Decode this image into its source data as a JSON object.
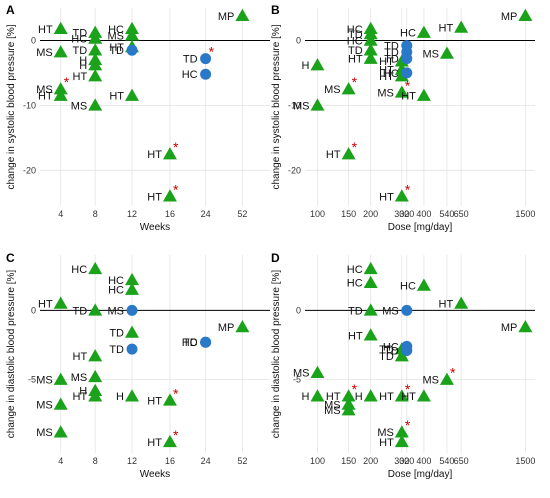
{
  "colors": {
    "triangle": "#1aa31a",
    "circle": "#2a78c8",
    "asterisk": "#cc0000",
    "grid": "#e4e4e4",
    "zero_line": "#000000",
    "axis_text": "#333333"
  },
  "chart_data": [
    {
      "panel_label": "A",
      "type": "scatter",
      "xlabel": "Weeks",
      "ylabel": "change in systolic blood pressure [%]",
      "x_scale": "categorical",
      "x_ticks": [
        "4",
        "8",
        "12",
        "16",
        "24",
        "52"
      ],
      "y_ticks": [
        0,
        -10,
        -20
      ],
      "ylim": [
        -25.5,
        5
      ],
      "reference_line": 0,
      "grid": true,
      "points": [
        {
          "x": "4",
          "y": 1.8,
          "shape": "triangle",
          "label": "HT"
        },
        {
          "x": "4",
          "y": -1.8,
          "shape": "triangle",
          "label": "MS"
        },
        {
          "x": "4",
          "y": -7.5,
          "shape": "triangle",
          "label": "MS",
          "asterisk": true
        },
        {
          "x": "4",
          "y": -8.5,
          "shape": "triangle",
          "label": "HT"
        },
        {
          "x": "8",
          "y": 1.2,
          "shape": "triangle",
          "label": "TD"
        },
        {
          "x": "8",
          "y": 0.3,
          "shape": "triangle",
          "label": "HC"
        },
        {
          "x": "8",
          "y": -1.5,
          "shape": "triangle",
          "label": "TD"
        },
        {
          "x": "8",
          "y": -3.8,
          "shape": "triangle",
          "label": "H"
        },
        {
          "x": "8",
          "y": -3.0,
          "shape": "triangle",
          "label": "H"
        },
        {
          "x": "8",
          "y": -5.5,
          "shape": "triangle",
          "label": "HT"
        },
        {
          "x": "8",
          "y": -10.0,
          "shape": "triangle",
          "label": "MS"
        },
        {
          "x": "12",
          "y": 1.8,
          "shape": "triangle",
          "label": "HC"
        },
        {
          "x": "12",
          "y": 0.8,
          "shape": "triangle",
          "label": "MS"
        },
        {
          "x": "12",
          "y": -1.0,
          "shape": "triangle",
          "label": "HT"
        },
        {
          "x": "12",
          "y": -1.5,
          "shape": "circle",
          "label": "TD"
        },
        {
          "x": "12",
          "y": -8.5,
          "shape": "triangle",
          "label": "HT"
        },
        {
          "x": "16",
          "y": -17.5,
          "shape": "triangle",
          "label": "HT",
          "asterisk": true
        },
        {
          "x": "16",
          "y": -24.0,
          "shape": "triangle",
          "label": "HT",
          "asterisk": true
        },
        {
          "x": "24",
          "y": -2.8,
          "shape": "circle",
          "label": "TD",
          "asterisk": true
        },
        {
          "x": "24",
          "y": -5.2,
          "shape": "circle",
          "label": "HC"
        },
        {
          "x": "52",
          "y": 3.8,
          "shape": "triangle",
          "label": "MP"
        }
      ]
    },
    {
      "panel_label": "B",
      "type": "scatter",
      "xlabel": "Dose [mg/day]",
      "ylabel": "change in systolic blood pressure [%]",
      "x_scale": "log",
      "x_ticks": [
        "100",
        "150",
        "200",
        "300",
        "320",
        "400",
        "540",
        "650",
        "1500"
      ],
      "y_ticks": [
        0,
        -10,
        -20
      ],
      "ylim": [
        -25.5,
        5
      ],
      "reference_line": 0,
      "grid": true,
      "points": [
        {
          "x": 100,
          "y": -3.8,
          "shape": "triangle",
          "label": "H"
        },
        {
          "x": 100,
          "y": -10.0,
          "shape": "triangle",
          "label": "MS"
        },
        {
          "x": 150,
          "y": -7.5,
          "shape": "triangle",
          "label": "MS",
          "asterisk": true
        },
        {
          "x": 150,
          "y": -17.5,
          "shape": "triangle",
          "label": "HT",
          "asterisk": true
        },
        {
          "x": 200,
          "y": 1.8,
          "shape": "triangle",
          "label": "HC"
        },
        {
          "x": 200,
          "y": 1.0,
          "shape": "triangle",
          "label": "TD"
        },
        {
          "x": 200,
          "y": 0.0,
          "shape": "triangle",
          "label": "HC"
        },
        {
          "x": 200,
          "y": -1.5,
          "shape": "triangle",
          "label": "TD"
        },
        {
          "x": 200,
          "y": -2.8,
          "shape": "triangle",
          "label": "HT"
        },
        {
          "x": 300,
          "y": -3.2,
          "shape": "triangle",
          "label": "HT"
        },
        {
          "x": 300,
          "y": -4.5,
          "shape": "triangle",
          "label": "HT"
        },
        {
          "x": 300,
          "y": -5.5,
          "shape": "triangle",
          "label": "HT"
        },
        {
          "x": 300,
          "y": -8.0,
          "shape": "triangle",
          "label": "MS",
          "asterisk": true
        },
        {
          "x": 300,
          "y": -24.0,
          "shape": "triangle",
          "label": "HT",
          "asterisk": true
        },
        {
          "x": 320,
          "y": -0.8,
          "shape": "circle",
          "label": "TD"
        },
        {
          "x": 320,
          "y": -1.8,
          "shape": "circle",
          "label": "TD"
        },
        {
          "x": 320,
          "y": -2.8,
          "shape": "circle",
          "label": "TD"
        },
        {
          "x": 320,
          "y": -5.0,
          "shape": "circle",
          "label": "HC"
        },
        {
          "x": 400,
          "y": 1.2,
          "shape": "triangle",
          "label": "HC"
        },
        {
          "x": 400,
          "y": -8.5,
          "shape": "triangle",
          "label": "HT"
        },
        {
          "x": 540,
          "y": -2.0,
          "shape": "triangle",
          "label": "MS"
        },
        {
          "x": 650,
          "y": 2.0,
          "shape": "triangle",
          "label": "HT"
        },
        {
          "x": 1500,
          "y": 3.8,
          "shape": "triangle",
          "label": "MP"
        }
      ]
    },
    {
      "panel_label": "C",
      "type": "scatter",
      "xlabel": "Weeks",
      "ylabel": "change in diastolic blood pressure [%]",
      "x_scale": "categorical",
      "x_ticks": [
        "4",
        "8",
        "12",
        "16",
        "24",
        "52"
      ],
      "y_ticks": [
        0,
        -5
      ],
      "ylim": [
        -10.3,
        4
      ],
      "reference_line": 0,
      "grid": true,
      "points": [
        {
          "x": "4",
          "y": 0.5,
          "shape": "triangle",
          "label": "HT"
        },
        {
          "x": "4",
          "y": -5.0,
          "shape": "triangle",
          "label": "MS"
        },
        {
          "x": "4",
          "y": -6.8,
          "shape": "triangle",
          "label": "MS"
        },
        {
          "x": "4",
          "y": -8.8,
          "shape": "triangle",
          "label": "MS"
        },
        {
          "x": "8",
          "y": 3.0,
          "shape": "triangle",
          "label": "HC"
        },
        {
          "x": "8",
          "y": 0.0,
          "shape": "triangle",
          "label": "TD"
        },
        {
          "x": "8",
          "y": -3.3,
          "shape": "triangle",
          "label": "HT"
        },
        {
          "x": "8",
          "y": -4.8,
          "shape": "triangle",
          "label": "MS"
        },
        {
          "x": "8",
          "y": -5.8,
          "shape": "triangle",
          "label": "H"
        },
        {
          "x": "8",
          "y": -6.2,
          "shape": "triangle",
          "label": "HT"
        },
        {
          "x": "12",
          "y": 2.2,
          "shape": "triangle",
          "label": "HC"
        },
        {
          "x": "12",
          "y": 1.5,
          "shape": "triangle",
          "label": "HC"
        },
        {
          "x": "12",
          "y": 0.0,
          "shape": "circle",
          "label": "MS"
        },
        {
          "x": "12",
          "y": -1.6,
          "shape": "triangle",
          "label": "TD"
        },
        {
          "x": "12",
          "y": -2.8,
          "shape": "circle",
          "label": "TD"
        },
        {
          "x": "12",
          "y": -6.2,
          "shape": "triangle",
          "label": "H"
        },
        {
          "x": "16",
          "y": -6.5,
          "shape": "triangle",
          "label": "HT",
          "asterisk": true
        },
        {
          "x": "16",
          "y": -9.5,
          "shape": "triangle",
          "label": "HT",
          "asterisk": true
        },
        {
          "x": "24",
          "y": -2.3,
          "shape": "circle",
          "label": "HC"
        },
        {
          "x": "24",
          "y": -2.3,
          "shape": "circle",
          "label": "TD"
        },
        {
          "x": "52",
          "y": -1.2,
          "shape": "triangle",
          "label": "MP"
        }
      ]
    },
    {
      "panel_label": "D",
      "type": "scatter",
      "xlabel": "Dose [mg/day]",
      "ylabel": "change in diastolic blood pressure [%]",
      "x_scale": "log",
      "x_ticks": [
        "100",
        "150",
        "200",
        "300",
        "320",
        "400",
        "540",
        "650",
        "1500"
      ],
      "y_ticks": [
        0,
        -5
      ],
      "ylim": [
        -10.3,
        4
      ],
      "reference_line": 0,
      "grid": true,
      "points": [
        {
          "x": 100,
          "y": -4.5,
          "shape": "triangle",
          "label": "MS"
        },
        {
          "x": 100,
          "y": -6.2,
          "shape": "triangle",
          "label": "H"
        },
        {
          "x": 150,
          "y": -6.2,
          "shape": "triangle",
          "label": "HT",
          "asterisk": true
        },
        {
          "x": 150,
          "y": -6.8,
          "shape": "triangle",
          "label": "MS"
        },
        {
          "x": 150,
          "y": -7.2,
          "shape": "triangle",
          "label": "MS"
        },
        {
          "x": 200,
          "y": 3.0,
          "shape": "triangle",
          "label": "HC"
        },
        {
          "x": 200,
          "y": 2.0,
          "shape": "triangle",
          "label": "HC"
        },
        {
          "x": 200,
          "y": 0.0,
          "shape": "triangle",
          "label": "TD"
        },
        {
          "x": 200,
          "y": -1.8,
          "shape": "triangle",
          "label": "HT"
        },
        {
          "x": 200,
          "y": -6.2,
          "shape": "triangle",
          "label": "H"
        },
        {
          "x": 300,
          "y": -2.8,
          "shape": "triangle",
          "label": "TD"
        },
        {
          "x": 300,
          "y": -3.3,
          "shape": "triangle",
          "label": "TD"
        },
        {
          "x": 300,
          "y": -6.2,
          "shape": "triangle",
          "label": "HT",
          "asterisk": true
        },
        {
          "x": 300,
          "y": -8.8,
          "shape": "triangle",
          "label": "MS",
          "asterisk": true
        },
        {
          "x": 300,
          "y": -9.5,
          "shape": "triangle",
          "label": "HT"
        },
        {
          "x": 320,
          "y": 0.0,
          "shape": "circle",
          "label": "MS"
        },
        {
          "x": 320,
          "y": -2.6,
          "shape": "circle",
          "label": "HC"
        },
        {
          "x": 320,
          "y": -2.9,
          "shape": "circle",
          "label": "TD"
        },
        {
          "x": 400,
          "y": 1.8,
          "shape": "triangle",
          "label": "HC"
        },
        {
          "x": 400,
          "y": -6.2,
          "shape": "triangle",
          "label": "HT"
        },
        {
          "x": 540,
          "y": -5.0,
          "shape": "triangle",
          "label": "MS",
          "asterisk": true
        },
        {
          "x": 650,
          "y": 0.5,
          "shape": "triangle",
          "label": "HT"
        },
        {
          "x": 1500,
          "y": -1.2,
          "shape": "triangle",
          "label": "MP"
        }
      ]
    }
  ]
}
